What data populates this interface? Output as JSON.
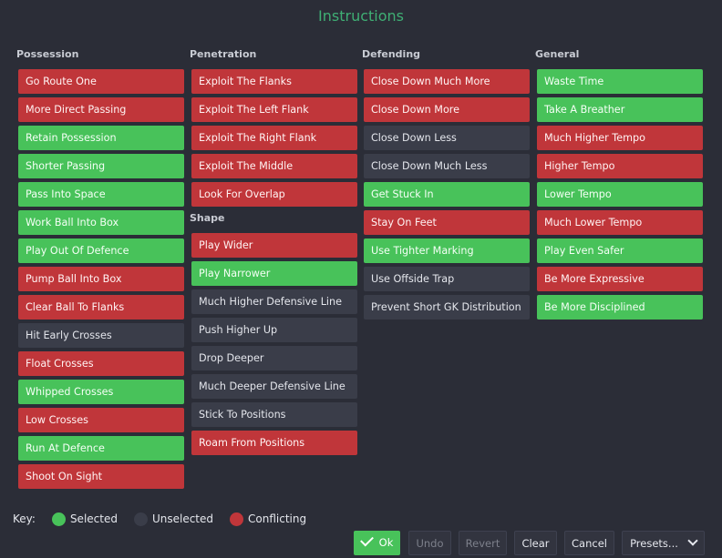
{
  "title": "Instructions",
  "colors": {
    "selected": "#48c25a",
    "unselected": "#3a3d49",
    "conflicting": "#c0363a",
    "title": "#3fae74"
  },
  "columns": [
    {
      "header": "Possession",
      "items": [
        {
          "label": "Go Route One",
          "state": "conflicting"
        },
        {
          "label": "More Direct Passing",
          "state": "conflicting"
        },
        {
          "label": "Retain Possession",
          "state": "selected"
        },
        {
          "label": "Shorter Passing",
          "state": "selected"
        },
        {
          "label": "Pass Into Space",
          "state": "selected"
        },
        {
          "label": "Work Ball Into Box",
          "state": "selected"
        },
        {
          "label": "Play Out Of Defence",
          "state": "selected"
        },
        {
          "label": "Pump Ball Into Box",
          "state": "conflicting"
        },
        {
          "label": "Clear Ball To Flanks",
          "state": "conflicting"
        },
        {
          "label": "Hit Early Crosses",
          "state": "unselected"
        },
        {
          "label": "Float Crosses",
          "state": "conflicting"
        },
        {
          "label": "Whipped Crosses",
          "state": "selected"
        },
        {
          "label": "Low Crosses",
          "state": "conflicting"
        },
        {
          "label": "Run At Defence",
          "state": "selected"
        },
        {
          "label": "Shoot On Sight",
          "state": "conflicting"
        }
      ]
    },
    {
      "header": "Penetration",
      "items": [
        {
          "label": "Exploit The Flanks",
          "state": "conflicting"
        },
        {
          "label": "Exploit The Left Flank",
          "state": "conflicting"
        },
        {
          "label": "Exploit The Right Flank",
          "state": "conflicting"
        },
        {
          "label": "Exploit The Middle",
          "state": "conflicting"
        },
        {
          "label": "Look For Overlap",
          "state": "conflicting"
        }
      ],
      "subheader": "Shape",
      "subitems": [
        {
          "label": "Play Wider",
          "state": "conflicting"
        },
        {
          "label": "Play Narrower",
          "state": "selected"
        },
        {
          "label": "Much Higher Defensive Line",
          "state": "unselected"
        },
        {
          "label": "Push Higher Up",
          "state": "unselected"
        },
        {
          "label": "Drop Deeper",
          "state": "unselected"
        },
        {
          "label": "Much Deeper Defensive Line",
          "state": "unselected"
        },
        {
          "label": "Stick To Positions",
          "state": "unselected"
        },
        {
          "label": "Roam From Positions",
          "state": "conflicting"
        }
      ]
    },
    {
      "header": "Defending",
      "items": [
        {
          "label": "Close Down Much More",
          "state": "conflicting"
        },
        {
          "label": "Close Down More",
          "state": "conflicting"
        },
        {
          "label": "Close Down Less",
          "state": "unselected"
        },
        {
          "label": "Close Down Much Less",
          "state": "unselected"
        },
        {
          "label": "Get Stuck In",
          "state": "selected"
        },
        {
          "label": "Stay On Feet",
          "state": "conflicting"
        },
        {
          "label": "Use Tighter Marking",
          "state": "selected"
        },
        {
          "label": "Use Offside Trap",
          "state": "unselected"
        },
        {
          "label": "Prevent Short GK Distribution",
          "state": "unselected"
        }
      ]
    },
    {
      "header": "General",
      "items": [
        {
          "label": "Waste Time",
          "state": "selected"
        },
        {
          "label": "Take A Breather",
          "state": "selected"
        },
        {
          "label": "Much Higher Tempo",
          "state": "conflicting"
        },
        {
          "label": "Higher Tempo",
          "state": "conflicting"
        },
        {
          "label": "Lower Tempo",
          "state": "selected"
        },
        {
          "label": "Much Lower Tempo",
          "state": "conflicting"
        },
        {
          "label": "Play Even Safer",
          "state": "selected"
        },
        {
          "label": "Be More Expressive",
          "state": "conflicting"
        },
        {
          "label": "Be More Disciplined",
          "state": "selected"
        }
      ]
    }
  ],
  "key": {
    "label": "Key:",
    "selected": "Selected",
    "unselected": "Unselected",
    "conflicting": "Conflicting"
  },
  "actions": {
    "ok": "Ok",
    "undo": "Undo",
    "revert": "Revert",
    "clear": "Clear",
    "cancel": "Cancel",
    "presets": "Presets..."
  }
}
